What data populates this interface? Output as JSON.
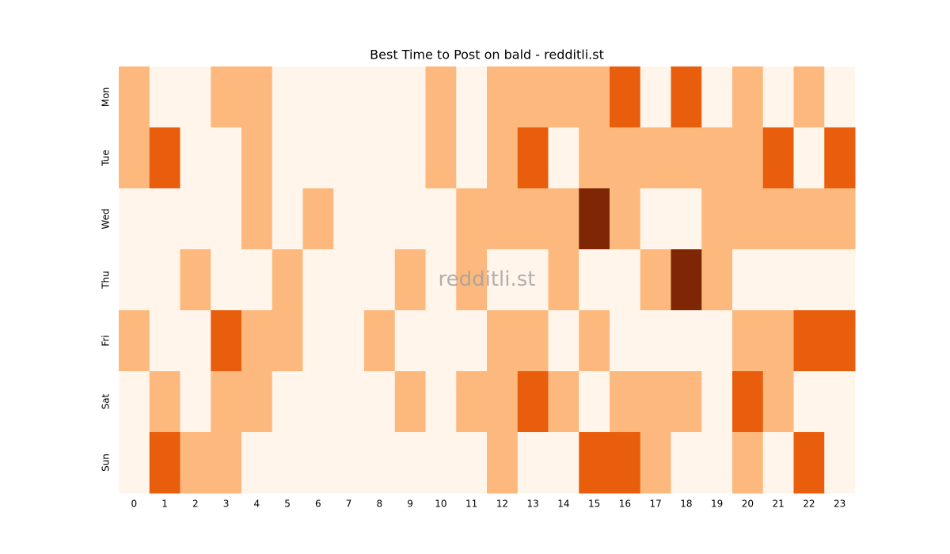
{
  "chart_data": {
    "type": "heatmap",
    "title": "Best Time to Post on bald - redditli.st",
    "watermark": "redditli.st",
    "x": [
      "0",
      "1",
      "2",
      "3",
      "4",
      "5",
      "6",
      "7",
      "8",
      "9",
      "10",
      "11",
      "12",
      "13",
      "14",
      "15",
      "16",
      "17",
      "18",
      "19",
      "20",
      "21",
      "22",
      "23"
    ],
    "categories": [
      "Mon",
      "Tue",
      "Wed",
      "Thu",
      "Fri",
      "Sat",
      "Sun"
    ],
    "values": [
      [
        1,
        0,
        0,
        1,
        1,
        0,
        0,
        0,
        0,
        0,
        1,
        0,
        1,
        1,
        1,
        1,
        2,
        0,
        2,
        0,
        1,
        0,
        1,
        0
      ],
      [
        1,
        2,
        0,
        0,
        1,
        0,
        0,
        0,
        0,
        0,
        1,
        0,
        1,
        2,
        0,
        1,
        1,
        1,
        1,
        1,
        1,
        2,
        0,
        2
      ],
      [
        0,
        0,
        0,
        0,
        1,
        0,
        1,
        0,
        0,
        0,
        0,
        1,
        1,
        1,
        1,
        3,
        1,
        0,
        0,
        1,
        1,
        1,
        1,
        1
      ],
      [
        0,
        0,
        1,
        0,
        0,
        1,
        0,
        0,
        0,
        1,
        0,
        1,
        0,
        0,
        1,
        0,
        0,
        1,
        3,
        1,
        0,
        0,
        0,
        0
      ],
      [
        1,
        0,
        0,
        2,
        1,
        1,
        0,
        0,
        1,
        0,
        0,
        0,
        1,
        1,
        0,
        1,
        0,
        0,
        0,
        0,
        1,
        1,
        2,
        2
      ],
      [
        0,
        1,
        0,
        1,
        1,
        0,
        0,
        0,
        0,
        1,
        0,
        1,
        1,
        2,
        1,
        0,
        1,
        1,
        1,
        0,
        2,
        1,
        0,
        0
      ],
      [
        0,
        2,
        1,
        1,
        0,
        0,
        0,
        0,
        0,
        0,
        0,
        0,
        1,
        0,
        0,
        2,
        2,
        1,
        0,
        0,
        1,
        0,
        2,
        0
      ]
    ],
    "vlim": [
      0,
      3
    ],
    "colors": [
      "#fff5eb",
      "#fdb97d",
      "#e95e0d",
      "#7f2704"
    ]
  }
}
